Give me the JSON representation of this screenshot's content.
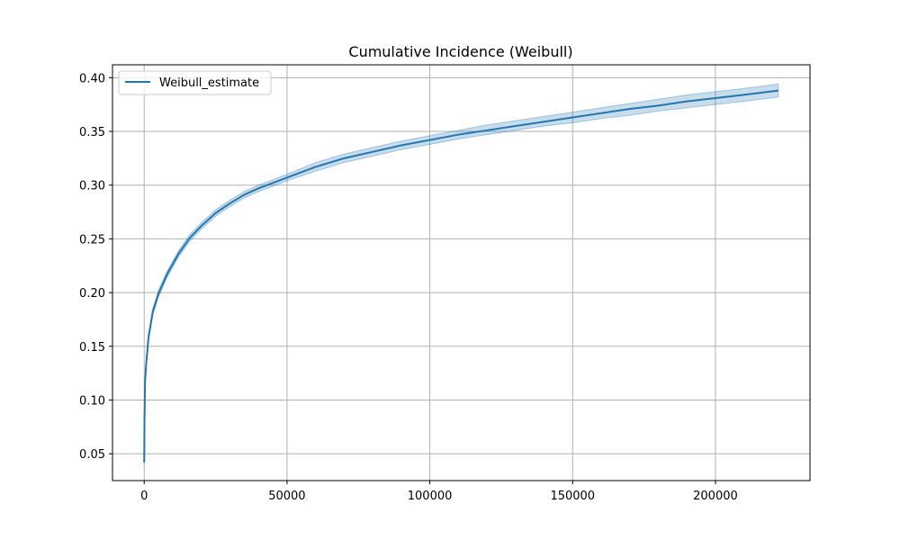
{
  "chart_data": {
    "type": "line",
    "title": "Cumulative Incidence (Weibull)",
    "xlabel": "",
    "ylabel": "",
    "xlim": [
      -11100,
      233100
    ],
    "ylim": [
      0.025,
      0.412
    ],
    "xticks": [
      0,
      50000,
      100000,
      150000,
      200000
    ],
    "xtick_labels": [
      "0",
      "50000",
      "100000",
      "150000",
      "200000"
    ],
    "yticks": [
      0.05,
      0.1,
      0.15,
      0.2,
      0.25,
      0.3,
      0.35,
      0.4
    ],
    "ytick_labels": [
      "0.05",
      "0.10",
      "0.15",
      "0.20",
      "0.25",
      "0.30",
      "0.35",
      "0.40"
    ],
    "grid": true,
    "legend": {
      "position": "upper-left",
      "entries": [
        "Weibull_estimate"
      ]
    },
    "series": [
      {
        "name": "Weibull_estimate",
        "color": "#1f77b4",
        "band_color": "#1f77b4",
        "x": [
          0,
          100,
          300,
          700,
          1500,
          3000,
          5000,
          8000,
          12000,
          16000,
          20000,
          25000,
          30000,
          35000,
          40000,
          50000,
          60000,
          70000,
          80000,
          90000,
          100000,
          110000,
          120000,
          130000,
          140000,
          150000,
          160000,
          170000,
          180000,
          190000,
          200000,
          210000,
          222000
        ],
        "y": [
          0.042,
          0.08,
          0.117,
          0.134,
          0.158,
          0.182,
          0.199,
          0.217,
          0.236,
          0.251,
          0.262,
          0.274,
          0.283,
          0.291,
          0.297,
          0.307,
          0.317,
          0.325,
          0.331,
          0.337,
          0.342,
          0.347,
          0.351,
          0.355,
          0.359,
          0.363,
          0.367,
          0.371,
          0.374,
          0.378,
          0.381,
          0.384,
          0.388
        ],
        "lower": [
          0.041,
          0.079,
          0.115,
          0.132,
          0.155,
          0.179,
          0.196,
          0.214,
          0.233,
          0.248,
          0.259,
          0.271,
          0.28,
          0.288,
          0.294,
          0.304,
          0.313,
          0.321,
          0.327,
          0.333,
          0.338,
          0.343,
          0.347,
          0.351,
          0.355,
          0.358,
          0.362,
          0.365,
          0.369,
          0.372,
          0.375,
          0.378,
          0.382
        ],
        "upper": [
          0.043,
          0.081,
          0.119,
          0.136,
          0.161,
          0.185,
          0.202,
          0.22,
          0.239,
          0.254,
          0.265,
          0.277,
          0.286,
          0.294,
          0.3,
          0.31,
          0.321,
          0.329,
          0.335,
          0.341,
          0.346,
          0.351,
          0.356,
          0.36,
          0.364,
          0.368,
          0.372,
          0.376,
          0.38,
          0.384,
          0.387,
          0.39,
          0.394
        ]
      }
    ]
  }
}
